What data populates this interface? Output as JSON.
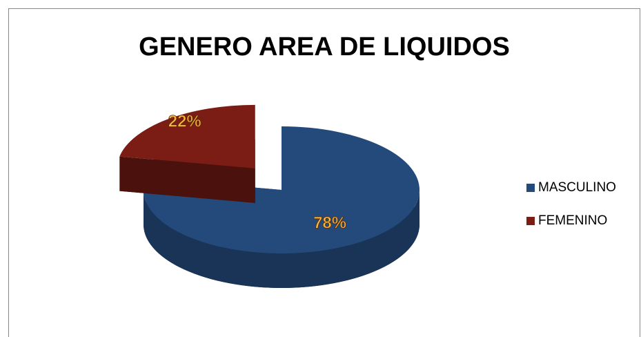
{
  "chart_data": {
    "type": "pie",
    "title": "GENERO AREA DE LIQUIDOS",
    "categories": [
      "MASCULINO",
      "FEMENINO"
    ],
    "values": [
      78,
      22
    ],
    "value_labels": [
      "78%",
      "22%"
    ],
    "colors": [
      "#244a7c",
      "#7b1d15"
    ],
    "legend": "right"
  }
}
